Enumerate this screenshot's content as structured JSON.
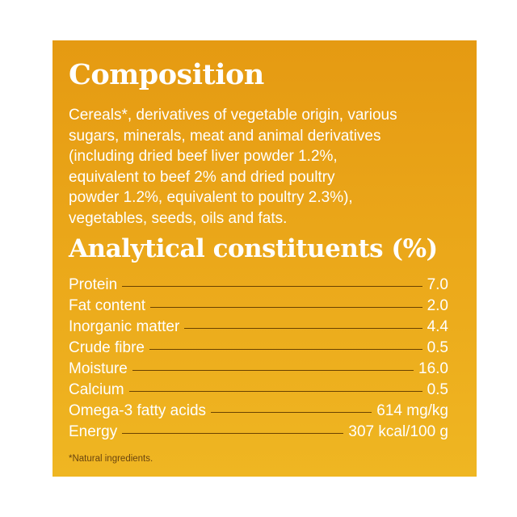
{
  "composition": {
    "title": "Composition",
    "lines": [
      "Cereals*, derivatives of vegetable origin, various",
      "sugars, minerals, meat and animal derivatives",
      "(including dried beef liver powder 1.2%,",
      "equivalent to beef 2% and dried poultry",
      "powder 1.2%, equivalent to poultry 2.3%),",
      "vegetables, seeds, oils and fats."
    ]
  },
  "analytical": {
    "title": "Analytical constituents (%)",
    "rows": [
      {
        "name": "Protein",
        "value": "7.0"
      },
      {
        "name": "Fat content",
        "value": "2.0"
      },
      {
        "name": "Inorganic matter",
        "value": "4.4"
      },
      {
        "name": "Crude fibre",
        "value": "0.5"
      },
      {
        "name": "Moisture",
        "value": "16.0"
      },
      {
        "name": "Calcium",
        "value": "0.5"
      },
      {
        "name": "Omega-3 fatty acids",
        "value": "614 mg/kg"
      },
      {
        "name": "Energy",
        "value": "307 kcal/100 g"
      }
    ]
  },
  "footnote": "*Natural ingredients."
}
